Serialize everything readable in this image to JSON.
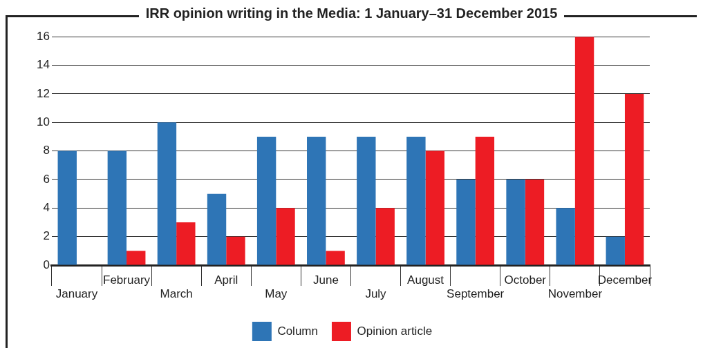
{
  "chart_data": {
    "type": "bar",
    "title": "IRR opinion writing in the Media: 1 January–31 December 2015",
    "categories": [
      "January",
      "February",
      "March",
      "April",
      "May",
      "June",
      "July",
      "August",
      "September",
      "October",
      "November",
      "December"
    ],
    "series": [
      {
        "name": "Column",
        "color": "#2e75b6",
        "values": [
          8,
          8,
          10,
          5,
          9,
          9,
          9,
          9,
          6,
          6,
          4,
          2
        ]
      },
      {
        "name": "Opinion article",
        "color": "#ed1c24",
        "values": [
          0,
          1,
          3,
          2,
          4,
          1,
          4,
          8,
          9,
          6,
          16,
          12
        ]
      }
    ],
    "ylim": [
      0,
      16
    ],
    "yticks": [
      0,
      2,
      4,
      6,
      8,
      10,
      12,
      14,
      16
    ],
    "grid": "y",
    "legend": "bottom"
  }
}
